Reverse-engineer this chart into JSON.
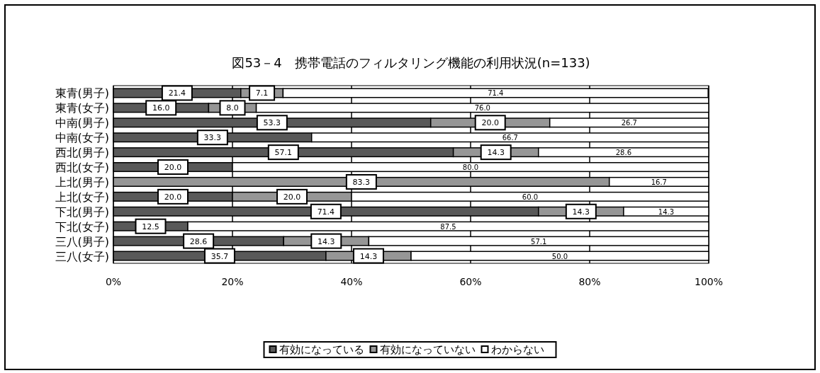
{
  "chart_data": {
    "type": "bar",
    "orientation": "horizontal",
    "stacked": true,
    "title": "図53－4　携帯電話のフィルタリング機能の利用状況(n=133)",
    "categories": [
      "東青(男子)",
      "東青(女子)",
      "中南(男子)",
      "中南(女子)",
      "西北(男子)",
      "西北(女子)",
      "上北(男子)",
      "上北(女子)",
      "下北(男子)",
      "下北(女子)",
      "三八(男子)",
      "三八(女子)"
    ],
    "series": [
      {
        "name": "有効になっている",
        "color": "#595959",
        "values": [
          21.4,
          16.0,
          53.3,
          33.3,
          57.1,
          20.0,
          null,
          20.0,
          71.4,
          12.5,
          28.6,
          35.7
        ],
        "value_labels": [
          "21.4",
          "16.0",
          "53.3",
          "33.3",
          "57.1",
          "20.0",
          null,
          "20.0",
          "71.4",
          "12.5",
          "28.6",
          "35.7"
        ]
      },
      {
        "name": "有効になっていない",
        "color": "#969696",
        "values": [
          7.1,
          8.0,
          20.0,
          null,
          14.3,
          null,
          83.3,
          20.0,
          14.3,
          null,
          14.3,
          14.3
        ],
        "value_labels": [
          "7.1",
          "8.0",
          "20.0",
          null,
          "14.3",
          null,
          "83.3",
          "20.0",
          "14.3",
          null,
          "14.3",
          "14.3"
        ]
      },
      {
        "name": "わからない",
        "color": "#ffffff",
        "values": [
          71.4,
          76.0,
          26.7,
          66.7,
          28.6,
          80.0,
          16.7,
          60.0,
          14.3,
          87.5,
          57.1,
          50.0
        ],
        "value_labels": [
          "71.4",
          "76.0",
          "26.7",
          "66.7",
          "28.6",
          "80.0",
          "16.7",
          "60.0",
          "14.3",
          "87.5",
          "57.1",
          "50.0"
        ]
      }
    ],
    "xlim": [
      0,
      100
    ],
    "xticks": [
      {
        "value": 0,
        "label": "0%"
      },
      {
        "value": 20,
        "label": "20%"
      },
      {
        "value": 40,
        "label": "40%"
      },
      {
        "value": 60,
        "label": "60%"
      },
      {
        "value": 80,
        "label": "80%"
      },
      {
        "value": 100,
        "label": "100%"
      }
    ],
    "grid": "x",
    "legend": "bottom"
  }
}
